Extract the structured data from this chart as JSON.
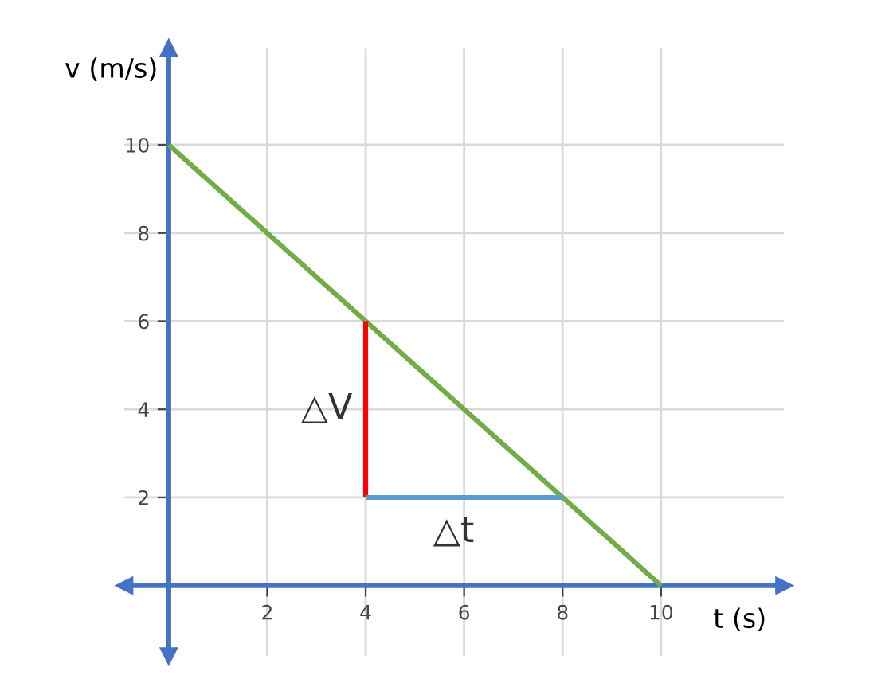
{
  "chart_data": {
    "type": "line",
    "xlabel": "t (s)",
    "ylabel": "v (m/s)",
    "xlim": [
      -0.9,
      12.5
    ],
    "ylim": [
      -1.6,
      12.2
    ],
    "xticks": [
      2,
      4,
      6,
      8,
      10
    ],
    "yticks": [
      2,
      4,
      6,
      8,
      10
    ],
    "grid": true,
    "series": [
      {
        "color": "#70ad47",
        "x": [
          0,
          10
        ],
        "values": [
          10,
          0
        ]
      },
      {
        "color": "#ff0000",
        "x": [
          4,
          4
        ],
        "values": [
          2,
          6
        ]
      },
      {
        "color": "#5b9bd5",
        "x": [
          4,
          8
        ],
        "values": [
          2,
          2
        ]
      }
    ],
    "annotations": [
      "△V",
      "△t"
    ]
  }
}
